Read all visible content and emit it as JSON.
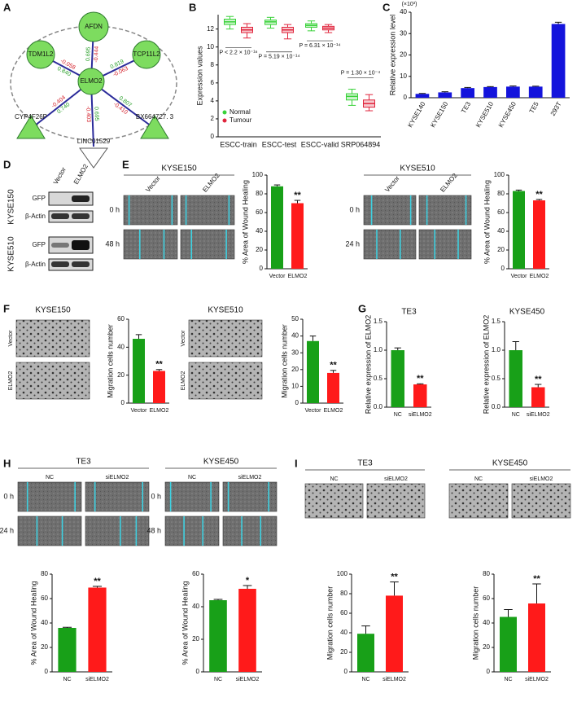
{
  "panel_labels": [
    "A",
    "B",
    "C",
    "D",
    "E",
    "F",
    "G",
    "H",
    "I"
  ],
  "network": {
    "nodes": [
      "ELMO2",
      "AFDN",
      "TDM1L2",
      "TCP11L2",
      "CYP4F26P",
      "BX664727. 3",
      "LINC01529"
    ],
    "edge_labels": [
      [
        "-0.444",
        "0.695"
      ],
      [
        "-0.058",
        "0.840"
      ],
      [
        "-0.063",
        "0.819"
      ],
      [
        "-0.404",
        "0.740"
      ],
      [
        "-0.410",
        "0.807"
      ],
      [
        "-0.403",
        "0.695"
      ]
    ]
  },
  "blots": {
    "cell_lines": [
      "KYSE150",
      "KYSE510"
    ],
    "lanes": [
      "Vector",
      "ELMO2"
    ],
    "proteins": [
      "GFP",
      "β-Actin"
    ]
  },
  "image_groups": [
    {
      "title": "KYSE150",
      "columns": [
        "Vector",
        "ELMO2"
      ],
      "rows": [
        "0 h",
        "48 h"
      ]
    },
    {
      "title": "KYSE510",
      "columns": [
        "Vector",
        "ELMO2"
      ],
      "rows": [
        "0 h",
        "24 h"
      ]
    },
    {
      "title": "KYSE150",
      "rows": [
        "Vector",
        "ELMO2"
      ]
    },
    {
      "title": "KYSE510",
      "rows": [
        "Vector",
        "ELMO2"
      ]
    },
    {
      "title": "TE3",
      "columns": [
        "NC",
        "siELMO2"
      ],
      "rows": [
        "0 h",
        "24 h"
      ]
    },
    {
      "title": "KYSE450",
      "columns": [
        "NC",
        "siELMO2"
      ],
      "rows": [
        "0 h",
        "48 h"
      ]
    },
    {
      "title": "TE3",
      "columns": [
        "NC",
        "siELMO2"
      ]
    },
    {
      "title": "KYSE450",
      "columns": [
        "NC",
        "siELMO2"
      ]
    }
  ],
  "chart_data": [
    {
      "type": "box",
      "y_label": "Expression values",
      "categories": [
        "ESCC-train",
        "ESCC-test",
        "ESCC-valid",
        "SRP064894"
      ],
      "series": [
        {
          "name": "Normal",
          "color": "#39d239",
          "values": [
            [
              12,
              12.5,
              12.8,
              13.1,
              13.4
            ],
            [
              12.1,
              12.5,
              12.8,
              13,
              13.3
            ],
            [
              11.8,
              12.2,
              12.4,
              12.6,
              12.9
            ],
            [
              3.5,
              4.1,
              4.5,
              4.8,
              5.3
            ]
          ]
        },
        {
          "name": "Tumour",
          "color": "#e0243c",
          "values": [
            [
              11,
              11.6,
              11.9,
              12.2,
              12.6
            ],
            [
              10.9,
              11.6,
              11.9,
              12.2,
              12.5
            ],
            [
              11.6,
              11.9,
              12.1,
              12.3,
              12.5
            ],
            [
              2.9,
              3.3,
              3.7,
              4.1,
              4.7
            ]
          ]
        }
      ],
      "annotations": [
        "P < 2.2 × 10⁻¹⁶",
        "P = 5.19 × 10⁻¹⁴",
        "P = 6.31 × 10⁻¹⁴",
        "P = 1.30 × 10⁻⁴"
      ],
      "ylim": [
        0,
        13.6
      ],
      "yticks": [
        0,
        2,
        4,
        6,
        8,
        10,
        12
      ],
      "legend": "lower left"
    },
    {
      "type": "bar",
      "y_label": "Relative expression level",
      "y_multiplier": "(×10³)",
      "color": "#1414dc",
      "categories": [
        "KYSE140",
        "KYSE150",
        "TE3",
        "KYSE510",
        "KYSE450",
        "TE5",
        "293T"
      ],
      "values": [
        1.8,
        2.5,
        4.5,
        5,
        5.2,
        5.2,
        34.5
      ],
      "errors": [
        0.2,
        0.3,
        0.3,
        0.2,
        0.3,
        0.2,
        0.8
      ],
      "ylim": [
        0,
        40
      ],
      "yticks": [
        0,
        10,
        20,
        30,
        40
      ]
    },
    {
      "type": "bar",
      "y_label": "% Area of Wound Healing",
      "colors": [
        "#18a018",
        "#ff1a1a"
      ],
      "categories": [
        "Vector",
        "ELMO2"
      ],
      "values": [
        88,
        70
      ],
      "errors": [
        1.5,
        3
      ],
      "significance": "**",
      "ylim": [
        0,
        100
      ],
      "yticks": [
        0,
        20,
        40,
        60,
        80,
        100
      ]
    },
    {
      "type": "bar",
      "y_label": "% Area of Wound Healing",
      "colors": [
        "#18a018",
        "#ff1a1a"
      ],
      "categories": [
        "Vector",
        "ELMO2"
      ],
      "values": [
        83,
        73
      ],
      "errors": [
        1,
        1
      ],
      "significance": "**",
      "ylim": [
        0,
        100
      ],
      "yticks": [
        0,
        20,
        40,
        60,
        80,
        100
      ]
    },
    {
      "type": "bar",
      "y_label": "Migration cells number",
      "colors": [
        "#18a018",
        "#ff1a1a"
      ],
      "categories": [
        "Vector",
        "ELMO2"
      ],
      "values": [
        46,
        23
      ],
      "errors": [
        3,
        1
      ],
      "significance": "**",
      "ylim": [
        0,
        60
      ],
      "yticks": [
        0,
        20,
        40,
        60
      ]
    },
    {
      "type": "bar",
      "y_label": "Migration cells number",
      "colors": [
        "#18a018",
        "#ff1a1a"
      ],
      "categories": [
        "Vector",
        "ELMO2"
      ],
      "values": [
        37,
        18
      ],
      "errors": [
        3,
        1.5
      ],
      "significance": "**",
      "ylim": [
        0,
        50
      ],
      "yticks": [
        0,
        10,
        20,
        30,
        40,
        50
      ]
    },
    {
      "type": "bar",
      "title": "TE3",
      "y_label": "Relative expression of ELMO2",
      "colors": [
        "#18a018",
        "#ff1a1a"
      ],
      "categories": [
        "NC",
        "siELMO2"
      ],
      "values": [
        1.0,
        0.4
      ],
      "errors": [
        0.04,
        0.01
      ],
      "significance": "**",
      "ylim": [
        0,
        1.5
      ],
      "yticks": [
        {
          "value": 0,
          "label": "0.0"
        },
        0.5,
        {
          "value": 1,
          "label": "1.0"
        },
        1.5
      ]
    },
    {
      "type": "bar",
      "title": "KYSE450",
      "y_label": "Relative expression of ELMO2",
      "colors": [
        "#18a018",
        "#ff1a1a"
      ],
      "categories": [
        "NC",
        "siELMO2"
      ],
      "values": [
        1.0,
        0.35
      ],
      "errors": [
        0.15,
        0.05
      ],
      "significance": "**",
      "ylim": [
        0,
        1.5
      ],
      "yticks": [
        {
          "value": 0,
          "label": "0.0"
        },
        0.5,
        {
          "value": 1,
          "label": "1.0"
        },
        1.5
      ]
    },
    {
      "type": "bar",
      "y_label": "% Area of Wound Healing",
      "colors": [
        "#18a018",
        "#ff1a1a"
      ],
      "categories": [
        "NC",
        "siELMO2"
      ],
      "values": [
        36,
        69
      ],
      "errors": [
        0.5,
        1
      ],
      "significance": "**",
      "ylim": [
        0,
        80
      ],
      "yticks": [
        0,
        20,
        40,
        60,
        80
      ]
    },
    {
      "type": "bar",
      "y_label": "% Area of Wound Healing",
      "colors": [
        "#18a018",
        "#ff1a1a"
      ],
      "categories": [
        "NC",
        "siELMO2"
      ],
      "values": [
        44,
        51
      ],
      "errors": [
        0.5,
        2
      ],
      "significance": "*",
      "ylim": [
        0,
        60
      ],
      "yticks": [
        0,
        20,
        40,
        60
      ]
    },
    {
      "type": "bar",
      "y_label": "Migration cells number",
      "colors": [
        "#18a018",
        "#ff1a1a"
      ],
      "categories": [
        "NC",
        "siELMO2"
      ],
      "values": [
        39,
        78
      ],
      "errors": [
        8,
        14
      ],
      "significance": "**",
      "ylim": [
        0,
        100
      ],
      "yticks": [
        0,
        20,
        40,
        60,
        80,
        100
      ]
    },
    {
      "type": "bar",
      "y_label": "Migration cells number",
      "colors": [
        "#18a018",
        "#ff1a1a"
      ],
      "categories": [
        "NC",
        "siELMO2"
      ],
      "values": [
        45,
        56
      ],
      "errors": [
        6,
        16
      ],
      "significance": "**",
      "ylim": [
        0,
        80
      ],
      "yticks": [
        0,
        20,
        40,
        60,
        80
      ]
    }
  ]
}
